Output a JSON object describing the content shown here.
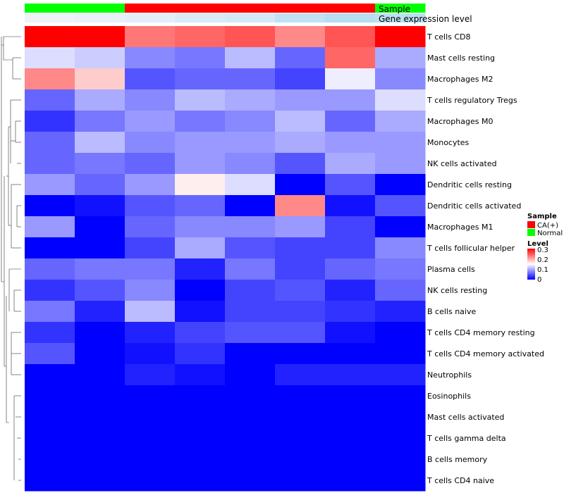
{
  "chart_data": {
    "type": "heatmap",
    "title": "",
    "annotation_labels": {
      "sample": "Sample",
      "expression": "Gene expression level"
    },
    "columns": [
      {
        "sample": "Normal",
        "expression": 0.0
      },
      {
        "sample": "Normal",
        "expression": 0.05
      },
      {
        "sample": "CA(+)",
        "expression": 0.1
      },
      {
        "sample": "CA(+)",
        "expression": 0.2
      },
      {
        "sample": "CA(+)",
        "expression": 0.25
      },
      {
        "sample": "CA(+)",
        "expression": 0.45
      },
      {
        "sample": "CA(+)",
        "expression": 0.55
      },
      {
        "sample": "Normal",
        "expression": 0.5
      }
    ],
    "rows": [
      {
        "label": "T cells CD8",
        "values": [
          0.3,
          0.3,
          0.23,
          0.24,
          0.25,
          0.22,
          0.25,
          0.3
        ]
      },
      {
        "label": "Mast cells resting",
        "values": [
          0.13,
          0.12,
          0.08,
          0.07,
          0.11,
          0.06,
          0.24,
          0.1
        ]
      },
      {
        "label": "Macrophages M2",
        "values": [
          0.22,
          0.18,
          0.05,
          0.06,
          0.06,
          0.04,
          0.14,
          0.08
        ]
      },
      {
        "label": "T cells regulatory  Tregs",
        "values": [
          0.06,
          0.1,
          0.08,
          0.11,
          0.1,
          0.09,
          0.09,
          0.13
        ]
      },
      {
        "label": "Macrophages M0",
        "values": [
          0.03,
          0.07,
          0.09,
          0.07,
          0.08,
          0.11,
          0.06,
          0.1
        ]
      },
      {
        "label": "Monocytes",
        "values": [
          0.06,
          0.11,
          0.08,
          0.09,
          0.09,
          0.1,
          0.09,
          0.09
        ]
      },
      {
        "label": "NK cells activated",
        "values": [
          0.06,
          0.07,
          0.06,
          0.09,
          0.08,
          0.05,
          0.1,
          0.09
        ]
      },
      {
        "label": "Dendritic cells resting",
        "values": [
          0.09,
          0.06,
          0.09,
          0.16,
          0.13,
          0.0,
          0.05,
          0.0
        ]
      },
      {
        "label": "Dendritic cells activated",
        "values": [
          0.0,
          0.01,
          0.05,
          0.06,
          0.0,
          0.22,
          0.01,
          0.05
        ]
      },
      {
        "label": "Macrophages M1",
        "values": [
          0.09,
          0.0,
          0.06,
          0.08,
          0.08,
          0.09,
          0.04,
          0.0
        ]
      },
      {
        "label": "T cells follicular helper",
        "values": [
          0.0,
          0.0,
          0.04,
          0.1,
          0.05,
          0.04,
          0.04,
          0.08
        ]
      },
      {
        "label": "Plasma cells",
        "values": [
          0.06,
          0.07,
          0.07,
          0.02,
          0.07,
          0.04,
          0.06,
          0.07
        ]
      },
      {
        "label": "NK cells resting",
        "values": [
          0.03,
          0.05,
          0.08,
          0.0,
          0.04,
          0.05,
          0.02,
          0.06
        ]
      },
      {
        "label": "B cells naive",
        "values": [
          0.07,
          0.02,
          0.11,
          0.01,
          0.04,
          0.04,
          0.03,
          0.02
        ]
      },
      {
        "label": "T cells CD4 memory resting",
        "values": [
          0.03,
          0.0,
          0.02,
          0.04,
          0.05,
          0.05,
          0.01,
          0.0
        ]
      },
      {
        "label": "T cells CD4 memory activated",
        "values": [
          0.05,
          0.0,
          0.01,
          0.03,
          0.0,
          0.0,
          0.0,
          0.0
        ]
      },
      {
        "label": "Neutrophils",
        "values": [
          0.0,
          0.0,
          0.02,
          0.01,
          0.0,
          0.02,
          0.02,
          0.02
        ]
      },
      {
        "label": "Eosinophils",
        "values": [
          0.0,
          0.0,
          0.0,
          0.0,
          0.0,
          0.0,
          0.0,
          0.0
        ]
      },
      {
        "label": "Mast cells activated",
        "values": [
          0.0,
          0.0,
          0.0,
          0.0,
          0.0,
          0.0,
          0.0,
          0.0
        ]
      },
      {
        "label": "T cells gamma delta",
        "values": [
          0.0,
          0.0,
          0.0,
          0.0,
          0.0,
          0.0,
          0.0,
          0.0
        ]
      },
      {
        "label": "B cells memory",
        "values": [
          0.0,
          0.0,
          0.0,
          0.0,
          0.0,
          0.0,
          0.0,
          0.0
        ]
      },
      {
        "label": "T cells CD4 naive",
        "values": [
          0.0,
          0.0,
          0.0,
          0.0,
          0.0,
          0.0,
          0.0,
          0.0
        ]
      }
    ],
    "color_scale": {
      "min": 0,
      "max": 0.3,
      "low": "#0000ff",
      "mid": "#ffffff",
      "high": "#ff0000"
    },
    "legend": {
      "sample_title": "Sample",
      "sample_entries": [
        {
          "label": "CA(+)",
          "color": "#ff0000"
        },
        {
          "label": "Normal",
          "color": "#00ff00"
        }
      ],
      "level_title": "Level",
      "level_ticks": [
        "0.3",
        "0.2",
        "0.1",
        "0"
      ],
      "position": "right"
    },
    "colors": {
      "expression_low": "#eef2f9",
      "expression_high": "#87ceeb"
    }
  }
}
